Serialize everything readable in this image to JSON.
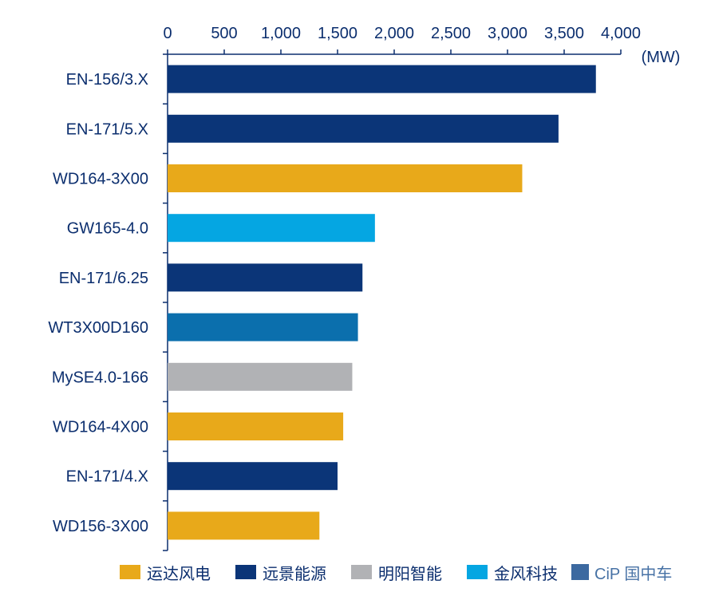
{
  "chart_data": {
    "type": "bar",
    "orientation": "horizontal",
    "unit": "(MW)",
    "xlim": [
      0,
      4000
    ],
    "x_ticks": [
      "0",
      "500",
      "1,000",
      "1,500",
      "2,000",
      "2,500",
      "3,000",
      "3,500",
      "4,000"
    ],
    "x_tick_values": [
      0,
      500,
      1000,
      1500,
      2000,
      2500,
      3000,
      3500,
      4000
    ],
    "categories": [
      "EN-156/3.X",
      "EN-171/5.X",
      "WD164-3X00",
      "GW165-4.0",
      "EN-171/6.25",
      "WT3X00D160",
      "MySE4.0-166",
      "WD164-4X00",
      "EN-171/4.X",
      "WD156-3X00"
    ],
    "values": [
      3780,
      3450,
      3130,
      1830,
      1720,
      1680,
      1630,
      1550,
      1500,
      1340
    ],
    "bar_colors": [
      "#0b3578",
      "#0b3578",
      "#e8a91a",
      "#05a6e2",
      "#0b3578",
      "#0b6fad",
      "#b1b2b5",
      "#e8a91a",
      "#0b3578",
      "#e8a91a"
    ],
    "legend": [
      {
        "label": "运达风电",
        "color": "#e8a91a"
      },
      {
        "label": "远景能源",
        "color": "#0b3578"
      },
      {
        "label": "明阳智能",
        "color": "#b1b2b5"
      },
      {
        "label": "金风科技",
        "color": "#05a6e2"
      }
    ],
    "legend_position": "bottom",
    "grid": false
  },
  "watermark": {
    "text": "CiP 国中车"
  }
}
